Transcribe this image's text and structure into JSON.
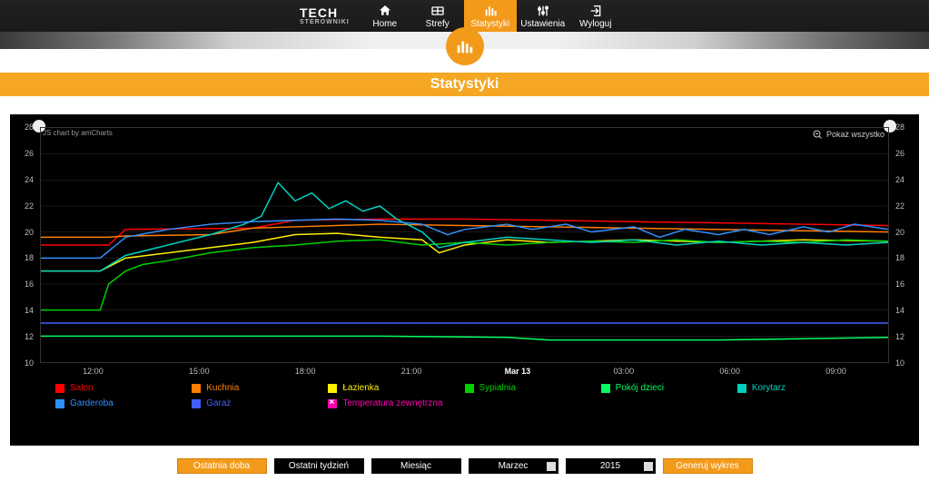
{
  "brand": {
    "line1": "TECH",
    "line2": "STEROWNIKI"
  },
  "nav": {
    "home": {
      "label": "Home"
    },
    "zones": {
      "label": "Strefy"
    },
    "stats": {
      "label": "Statystyki"
    },
    "set": {
      "label": "Ustawienia"
    },
    "logout": {
      "label": "Wyloguj"
    }
  },
  "page_title": "Statystyki",
  "chart": {
    "credit": "JS chart by amCharts",
    "show_all": "Pokaż wszystko",
    "ylim": [
      10,
      28
    ],
    "ytick_step": 2,
    "background_color": "#000000",
    "grid_color": "#333333",
    "x_labels": [
      "12:00",
      "15:00",
      "18:00",
      "21:00",
      "Mar 13",
      "03:00",
      "06:00",
      "09:00"
    ],
    "series": [
      {
        "name": "Salon",
        "color": "#ff0000",
        "points": [
          [
            0,
            19.0
          ],
          [
            8,
            19.0
          ],
          [
            10,
            20.2
          ],
          [
            25,
            20.3
          ],
          [
            30,
            20.9
          ],
          [
            40,
            21.0
          ],
          [
            50,
            21.0
          ],
          [
            60,
            20.9
          ],
          [
            70,
            20.8
          ],
          [
            80,
            20.7
          ],
          [
            90,
            20.6
          ],
          [
            100,
            20.5
          ]
        ]
      },
      {
        "name": "Kuchnia",
        "color": "#ff7f00",
        "points": [
          [
            0,
            19.6
          ],
          [
            8,
            19.6
          ],
          [
            10,
            19.7
          ],
          [
            20,
            19.8
          ],
          [
            25,
            20.3
          ],
          [
            30,
            20.4
          ],
          [
            40,
            20.6
          ],
          [
            50,
            20.5
          ],
          [
            60,
            20.4
          ],
          [
            70,
            20.3
          ],
          [
            80,
            20.2
          ],
          [
            90,
            20.1
          ],
          [
            100,
            20.0
          ]
        ]
      },
      {
        "name": "Łazienka",
        "color": "#ffee00",
        "points": [
          [
            0,
            17.0
          ],
          [
            7,
            17.0
          ],
          [
            10,
            18.0
          ],
          [
            15,
            18.4
          ],
          [
            20,
            18.8
          ],
          [
            25,
            19.2
          ],
          [
            30,
            19.8
          ],
          [
            35,
            19.9
          ],
          [
            40,
            19.6
          ],
          [
            45,
            19.4
          ],
          [
            47,
            18.4
          ],
          [
            50,
            19.0
          ],
          [
            55,
            19.4
          ],
          [
            60,
            19.2
          ],
          [
            70,
            19.4
          ],
          [
            80,
            19.2
          ],
          [
            90,
            19.4
          ],
          [
            100,
            19.3
          ]
        ]
      },
      {
        "name": "Sypialnia",
        "color": "#00d000",
        "points": [
          [
            0,
            14.0
          ],
          [
            7,
            14.0
          ],
          [
            8,
            16.0
          ],
          [
            10,
            17.0
          ],
          [
            12,
            17.5
          ],
          [
            15,
            17.8
          ],
          [
            20,
            18.4
          ],
          [
            25,
            18.8
          ],
          [
            30,
            19.0
          ],
          [
            35,
            19.3
          ],
          [
            40,
            19.4
          ],
          [
            45,
            19.0
          ],
          [
            50,
            19.2
          ],
          [
            55,
            19.0
          ],
          [
            60,
            19.2
          ],
          [
            65,
            19.3
          ],
          [
            70,
            19.2
          ],
          [
            75,
            19.4
          ],
          [
            80,
            19.2
          ],
          [
            85,
            19.3
          ],
          [
            90,
            19.2
          ],
          [
            95,
            19.4
          ],
          [
            100,
            19.3
          ]
        ]
      },
      {
        "name": "Pokój dzieci",
        "color": "#00ff60",
        "points": [
          [
            0,
            12.0
          ],
          [
            20,
            12.0
          ],
          [
            40,
            12.0
          ],
          [
            55,
            11.9
          ],
          [
            60,
            11.7
          ],
          [
            70,
            11.7
          ],
          [
            80,
            11.7
          ],
          [
            90,
            11.8
          ],
          [
            100,
            11.9
          ]
        ]
      },
      {
        "name": "Korytarz",
        "color": "#00d0c0",
        "points": [
          [
            0,
            17.0
          ],
          [
            7,
            17.0
          ],
          [
            10,
            18.2
          ],
          [
            15,
            19.0
          ],
          [
            20,
            19.8
          ],
          [
            24,
            20.6
          ],
          [
            26,
            21.2
          ],
          [
            28,
            23.8
          ],
          [
            30,
            22.4
          ],
          [
            32,
            23.0
          ],
          [
            34,
            21.8
          ],
          [
            36,
            22.4
          ],
          [
            38,
            21.6
          ],
          [
            40,
            22.0
          ],
          [
            42,
            21.0
          ],
          [
            45,
            20.0
          ],
          [
            47,
            18.8
          ],
          [
            50,
            19.2
          ],
          [
            55,
            19.6
          ],
          [
            60,
            19.4
          ],
          [
            65,
            19.2
          ],
          [
            70,
            19.4
          ],
          [
            75,
            19.0
          ],
          [
            80,
            19.3
          ],
          [
            85,
            19.0
          ],
          [
            90,
            19.2
          ],
          [
            95,
            19.0
          ],
          [
            100,
            19.2
          ]
        ]
      },
      {
        "name": "Garderoba",
        "color": "#3090ff",
        "points": [
          [
            0,
            18.0
          ],
          [
            7,
            18.0
          ],
          [
            10,
            19.6
          ],
          [
            15,
            20.2
          ],
          [
            20,
            20.6
          ],
          [
            25,
            20.8
          ],
          [
            30,
            20.9
          ],
          [
            35,
            21.0
          ],
          [
            40,
            20.9
          ],
          [
            45,
            20.6
          ],
          [
            48,
            19.8
          ],
          [
            50,
            20.2
          ],
          [
            55,
            20.6
          ],
          [
            58,
            20.2
          ],
          [
            62,
            20.6
          ],
          [
            65,
            20.0
          ],
          [
            70,
            20.4
          ],
          [
            73,
            19.6
          ],
          [
            76,
            20.2
          ],
          [
            80,
            19.8
          ],
          [
            83,
            20.2
          ],
          [
            86,
            19.8
          ],
          [
            90,
            20.4
          ],
          [
            93,
            20.0
          ],
          [
            96,
            20.6
          ],
          [
            100,
            20.2
          ]
        ]
      },
      {
        "name": "Garaż",
        "color": "#4060ff",
        "points": [
          [
            0,
            13.0
          ],
          [
            20,
            13.0
          ],
          [
            40,
            13.0
          ],
          [
            60,
            13.0
          ],
          [
            80,
            13.0
          ],
          [
            100,
            13.0
          ]
        ]
      },
      {
        "name": "Temperatura zewnętrzna",
        "color": "#ff00b0",
        "disabled": true,
        "points": []
      }
    ]
  },
  "controls": {
    "last_day": "Ostatnia doba",
    "last_week": "Ostatni tydzień",
    "month": "Miesiąc",
    "month_sel": "Marzec",
    "year_sel": "2015",
    "generate": "Generuj wykres"
  }
}
